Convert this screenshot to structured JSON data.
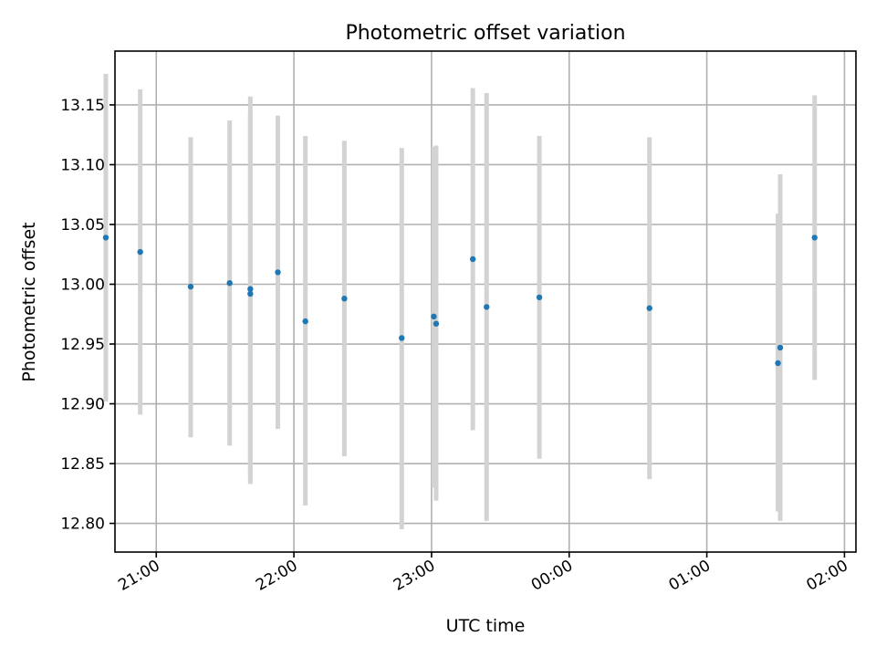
{
  "chart_data": {
    "type": "scatter",
    "title": "Photometric offset variation",
    "xlabel": "UTC time",
    "ylabel": "Photometric offset",
    "grid": true,
    "colors": {
      "point": "#1f77b4",
      "errorbar": "#d3d3d3",
      "grid": "#b0b0b0"
    },
    "xlim": [
      "2023-01-01 20:42",
      "2023-01-02 02:05"
    ],
    "ylim": [
      12.776,
      13.195
    ],
    "x_ticks": [
      {
        "value": "2023-01-01 21:00",
        "label": "21:00"
      },
      {
        "value": "2023-01-01 22:00",
        "label": "22:00"
      },
      {
        "value": "2023-01-01 23:00",
        "label": "23:00"
      },
      {
        "value": "2023-01-02 00:00",
        "label": "00:00"
      },
      {
        "value": "2023-01-02 01:00",
        "label": "01:00"
      },
      {
        "value": "2023-01-02 02:00",
        "label": "02:00"
      }
    ],
    "y_ticks": [
      {
        "value": 12.8,
        "label": "12.80"
      },
      {
        "value": 12.85,
        "label": "12.85"
      },
      {
        "value": 12.9,
        "label": "12.90"
      },
      {
        "value": 12.95,
        "label": "12.95"
      },
      {
        "value": 13.0,
        "label": "13.00"
      },
      {
        "value": 13.05,
        "label": "13.05"
      },
      {
        "value": 13.1,
        "label": "13.10"
      },
      {
        "value": 13.15,
        "label": "13.15"
      }
    ],
    "points": [
      {
        "x": "2023-01-01 20:38",
        "y": 13.039,
        "yerr_low": 12.902,
        "yerr_high": 13.176
      },
      {
        "x": "2023-01-01 20:53",
        "y": 13.027,
        "yerr_low": 12.891,
        "yerr_high": 13.163
      },
      {
        "x": "2023-01-01 21:15",
        "y": 12.998,
        "yerr_low": 12.872,
        "yerr_high": 13.123
      },
      {
        "x": "2023-01-01 21:32",
        "y": 13.001,
        "yerr_low": 12.865,
        "yerr_high": 13.137
      },
      {
        "x": "2023-01-01 21:41",
        "y": 12.996,
        "yerr_low": 12.84,
        "yerr_high": 13.157
      },
      {
        "x": "2023-01-01 21:41",
        "y": 12.992,
        "yerr_low": 12.833,
        "yerr_high": 13.143
      },
      {
        "x": "2023-01-01 21:53",
        "y": 13.01,
        "yerr_low": 12.879,
        "yerr_high": 13.141
      },
      {
        "x": "2023-01-01 22:05",
        "y": 12.969,
        "yerr_low": 12.815,
        "yerr_high": 13.124
      },
      {
        "x": "2023-01-01 22:22",
        "y": 12.988,
        "yerr_low": 12.856,
        "yerr_high": 13.12
      },
      {
        "x": "2023-01-01 22:47",
        "y": 12.955,
        "yerr_low": 12.795,
        "yerr_high": 13.114
      },
      {
        "x": "2023-01-01 23:01",
        "y": 12.973,
        "yerr_low": 12.83,
        "yerr_high": 13.115
      },
      {
        "x": "2023-01-01 23:02",
        "y": 12.967,
        "yerr_low": 12.819,
        "yerr_high": 13.116
      },
      {
        "x": "2023-01-01 23:18",
        "y": 13.021,
        "yerr_low": 12.878,
        "yerr_high": 13.164
      },
      {
        "x": "2023-01-01 23:24",
        "y": 12.981,
        "yerr_low": 12.802,
        "yerr_high": 13.16
      },
      {
        "x": "2023-01-01 23:47",
        "y": 12.989,
        "yerr_low": 12.854,
        "yerr_high": 13.124
      },
      {
        "x": "2023-01-02 00:35",
        "y": 12.98,
        "yerr_low": 12.837,
        "yerr_high": 13.123
      },
      {
        "x": "2023-01-02 01:31",
        "y": 12.934,
        "yerr_low": 12.81,
        "yerr_high": 13.059
      },
      {
        "x": "2023-01-02 01:32",
        "y": 12.947,
        "yerr_low": 12.802,
        "yerr_high": 13.092
      },
      {
        "x": "2023-01-02 01:47",
        "y": 13.039,
        "yerr_low": 12.92,
        "yerr_high": 13.158
      }
    ]
  }
}
